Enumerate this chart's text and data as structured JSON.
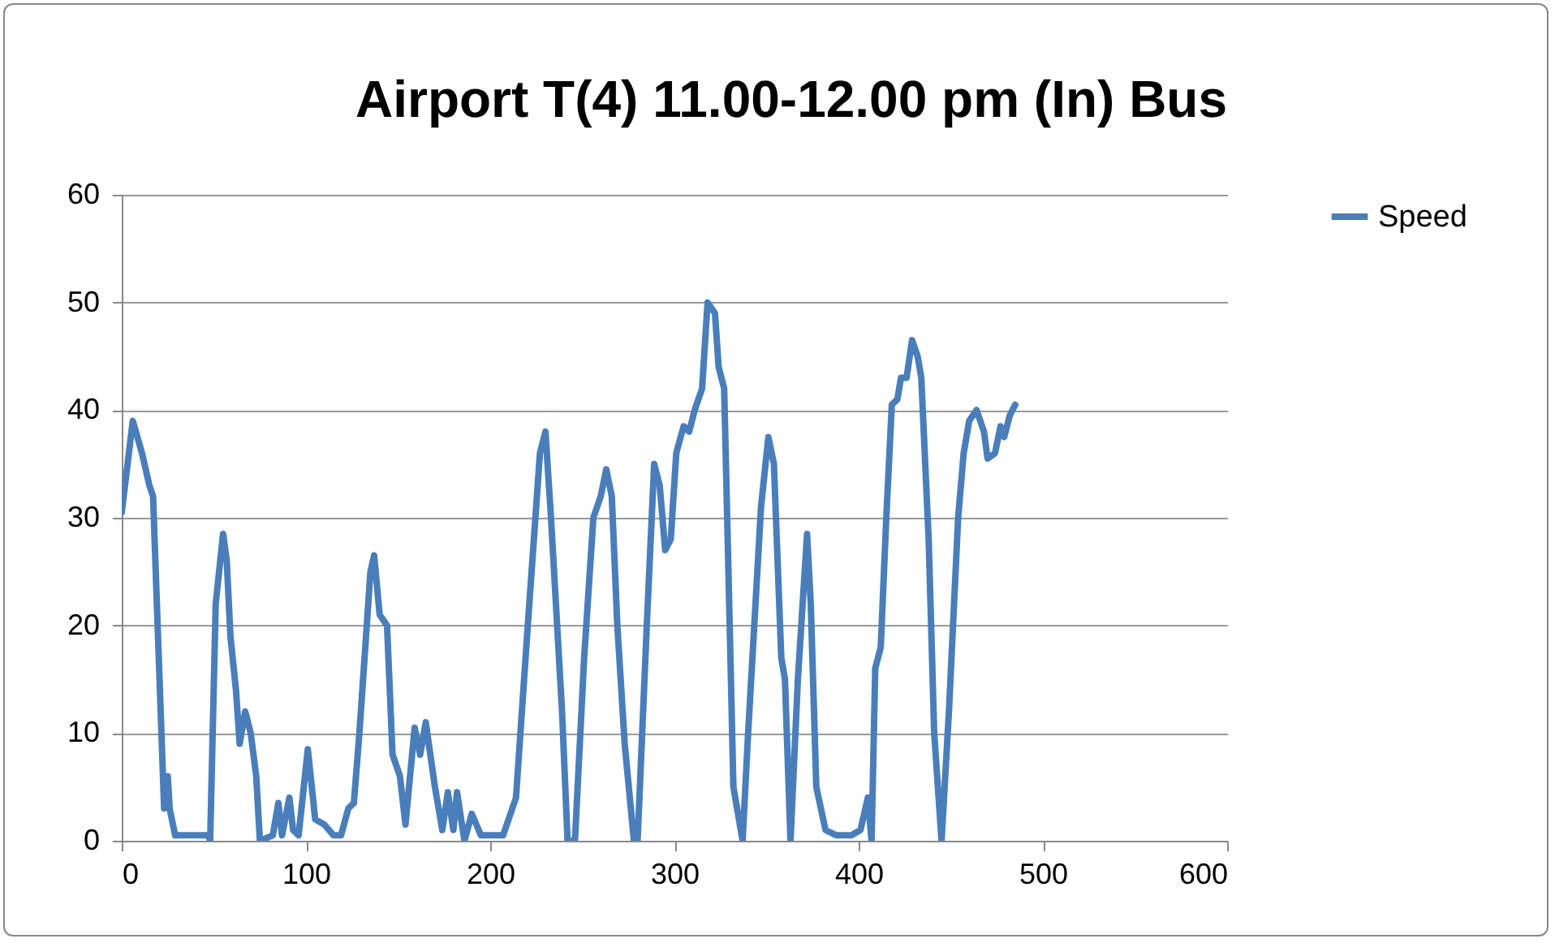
{
  "chart_data": {
    "type": "line",
    "title": "Airport T(4) 11.00-12.00 pm (In) Bus",
    "x": [
      0,
      6,
      11,
      15,
      17,
      23,
      25,
      26,
      29,
      33,
      40,
      47,
      48,
      51,
      55,
      57,
      59,
      62,
      64,
      67,
      70,
      73,
      75,
      82,
      85,
      87,
      91,
      93,
      96,
      101,
      105,
      110,
      115,
      119,
      123,
      126,
      129,
      135,
      137,
      140,
      144,
      147,
      151,
      154,
      159,
      162,
      165,
      170,
      174,
      177,
      180,
      182,
      186,
      190,
      195,
      198,
      207,
      214,
      220,
      227,
      230,
      233,
      239,
      242,
      246,
      251,
      256,
      260,
      263,
      266,
      269,
      273,
      278,
      280,
      285,
      289,
      292,
      295,
      298,
      301,
      305,
      308,
      311,
      315,
      318,
      322,
      324,
      327,
      330,
      332,
      337,
      340,
      344,
      347,
      351,
      354,
      358,
      360,
      363,
      367,
      372,
      374,
      377,
      382,
      388,
      396,
      401,
      405,
      407,
      409,
      412,
      415,
      418,
      421,
      423,
      426,
      429,
      432,
      434,
      438,
      441,
      445,
      449,
      454,
      457,
      460,
      464,
      468,
      470,
      474,
      477,
      479,
      482,
      485
    ],
    "series": [
      {
        "name": "Speed",
        "color": "#4a7ebb",
        "values": [
          30.5,
          39,
          36,
          33,
          32,
          3,
          6,
          3,
          0.5,
          0.5,
          0.5,
          0.5,
          0,
          22,
          28.5,
          26,
          19,
          14,
          9,
          12,
          10,
          6,
          0,
          0.5,
          3.5,
          0.5,
          4,
          1,
          0.5,
          8.5,
          2,
          1.5,
          0.5,
          0.5,
          3,
          3.5,
          10,
          25,
          26.5,
          21,
          20,
          8,
          6,
          1.5,
          10.5,
          8,
          11,
          5,
          1,
          4.5,
          1,
          4.5,
          0,
          2.5,
          0.5,
          0.5,
          0.5,
          4,
          19,
          36,
          38,
          30,
          12,
          0,
          0,
          17,
          30,
          32,
          34.5,
          32,
          20,
          9,
          0,
          0,
          20,
          35,
          33,
          27,
          28,
          36,
          38.5,
          38,
          40,
          42,
          50,
          49,
          44,
          42,
          20,
          5,
          0,
          10,
          22,
          31,
          37.5,
          35,
          17,
          15,
          0,
          15,
          28.5,
          22,
          5,
          1,
          0.5,
          0.5,
          1,
          4,
          0,
          16,
          18,
          30,
          40.5,
          41,
          43,
          43,
          46.5,
          45,
          43,
          28,
          10,
          0,
          12,
          30,
          36,
          39,
          40,
          38,
          35.5,
          36,
          38.5,
          37.5,
          39.5,
          40.5
        ]
      }
    ],
    "xlim": [
      0,
      600
    ],
    "xticks": [
      0,
      100,
      200,
      300,
      400,
      500,
      600
    ],
    "ylim": [
      0,
      60
    ],
    "yticks": [
      0,
      10,
      20,
      30,
      40,
      50,
      60
    ],
    "grid": "y",
    "legend": "right",
    "marker": "none",
    "line_style": "solid"
  }
}
